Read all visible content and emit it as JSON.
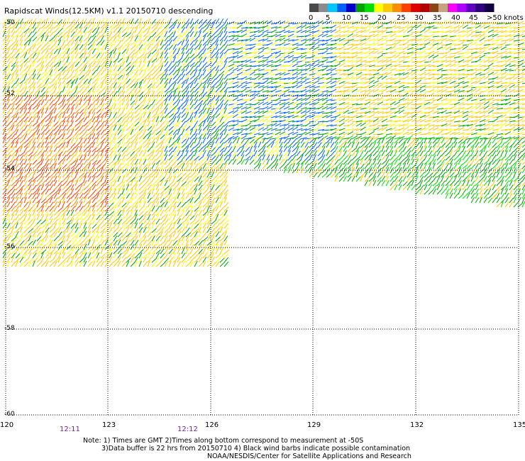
{
  "header": {
    "title": "Rapidscat Winds(12.5KM) v1.1 20150710 descending"
  },
  "scale": {
    "labels": [
      "0",
      "5",
      "10",
      "15",
      "20",
      "25",
      "30",
      "35",
      "40",
      "45",
      ">50 knots"
    ],
    "colors": [
      "#4a4a4a",
      "#8c8c8c",
      "#00c8ff",
      "#0060ff",
      "#0000c8",
      "#00a000",
      "#00e000",
      "#ffff00",
      "#ffc800",
      "#ff8c00",
      "#ff4000",
      "#e00000",
      "#b40000",
      "#8b4513",
      "#c8a080",
      "#ff00ff",
      "#b000ff",
      "#6000c0",
      "#300080",
      "#100040"
    ]
  },
  "axes": {
    "x_ticks": [
      "120",
      "123",
      "126",
      "129",
      "132",
      "135"
    ],
    "y_ticks": [
      "-50",
      "-52",
      "-54",
      "-56",
      "-58",
      "-60"
    ]
  },
  "times": [
    "12:11",
    "12:12"
  ],
  "notes": {
    "line1": "Note: 1) Times are GMT 2)Times along bottom correspond to measurement at -50S",
    "line2": "3)Data buffer is 22 hrs from 20150710 4) Black wind barbs indicate possible contamination",
    "line3": "NOAA/NESDIS/Center for Satellite Applications and Research"
  }
}
